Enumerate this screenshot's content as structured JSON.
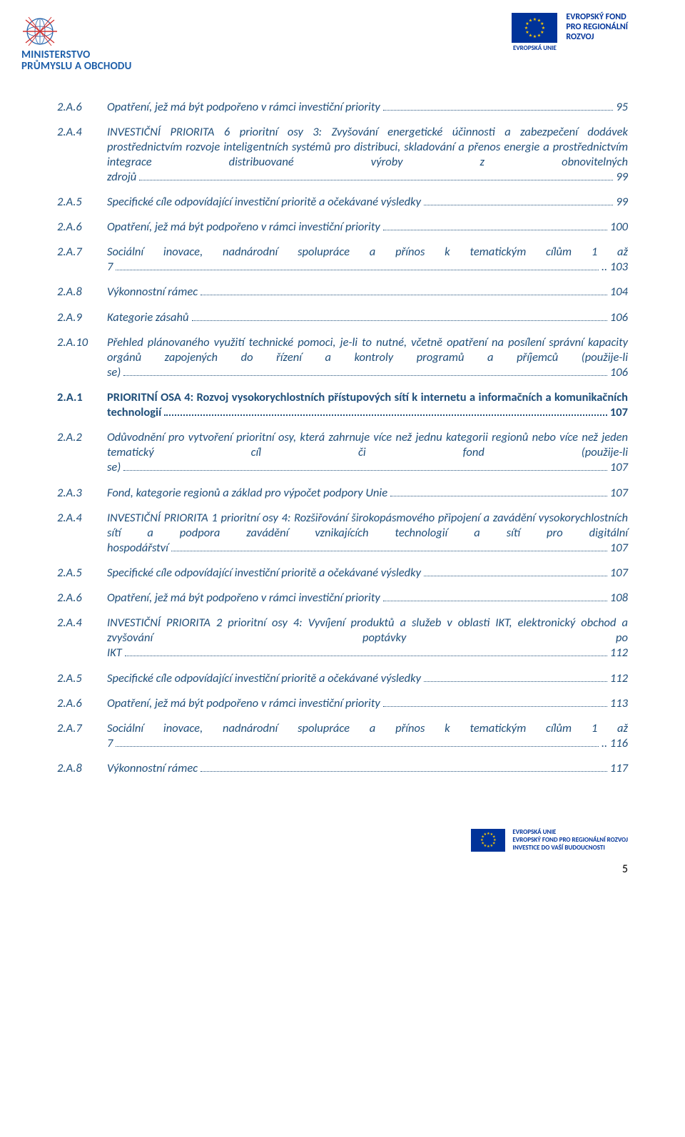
{
  "colors": {
    "toc_text": "#1f4e79",
    "eu_blue": "#003399",
    "eu_gold": "#ffcc00",
    "body_bg": "#ffffff"
  },
  "typography": {
    "body_family": "Calibri",
    "toc_fontsize_pt": 12,
    "toc_style": "italic",
    "heading_weight": 700
  },
  "header": {
    "mpo_line1": "MINISTERSTVO",
    "mpo_line2": "PRŮMYSLU A OBCHODU",
    "eu_label": "EVROPSKÁ UNIE",
    "efrr_line1": "EVROPSKÝ FOND",
    "efrr_line2": "PRO REGIONÁLNÍ",
    "efrr_line3": "ROZVOJ"
  },
  "toc": [
    {
      "num": "2.A.6",
      "text": "Opatření, jež má být podpořeno v rámci investiční priority",
      "page": "95",
      "bold": false
    },
    {
      "num": "2.A.4",
      "text": "INVESTIČNÍ PRIORITA 6 prioritní osy 3: Zvyšování energetické účinnosti a zabezpečení dodávek prostřednictvím rozvoje inteligentních systémů pro distribuci, skladování a přenos energie a prostřednictvím integrace distribuované výroby z obnovitelných zdrojů",
      "page": "99",
      "bold": false
    },
    {
      "num": "2.A.5",
      "text": "Specifické cíle odpovídající investiční prioritě a očekávané výsledky",
      "page": "99",
      "bold": false
    },
    {
      "num": "2.A.6",
      "text": "Opatření, jež má být podpořeno v rámci investiční priority",
      "page": "100",
      "bold": false
    },
    {
      "num": "2.A.7",
      "text": "Sociální inovace, nadnárodní spolupráce a přínos k tematickým cílům 1 až 7",
      "page": "103",
      "bold": false,
      "tight": true
    },
    {
      "num": "2.A.8",
      "text": "Výkonnostní rámec",
      "page": "104",
      "bold": false
    },
    {
      "num": "2.A.9",
      "text": "Kategorie zásahů",
      "page": "106",
      "bold": false
    },
    {
      "num": "2.A.10",
      "text": "Přehled plánovaného využití technické pomoci, je-li to nutné, včetně opatření na posílení správní kapacity orgánů zapojených do řízení a kontroly programů a příjemců (použije-li se)",
      "page": "106",
      "bold": false
    },
    {
      "num": "2.A.1",
      "text": "PRIORITNÍ OSA 4: Rozvoj vysokorychlostních přístupových sítí k internetu a informačních a komunikačních technologií",
      "page": "107",
      "bold": true
    },
    {
      "num": "2.A.2",
      "text": "Odůvodnění pro vytvoření prioritní osy, která zahrnuje více než jednu kategorii regionů nebo více než jeden tematický cíl či fond (použije-li se)",
      "page": "107",
      "bold": false
    },
    {
      "num": "2.A.3",
      "text": "Fond, kategorie regionů a základ pro výpočet podpory Unie",
      "page": "107",
      "bold": false
    },
    {
      "num": "2.A.4",
      "text": "INVESTIČNÍ PRIORITA 1 prioritní osy 4: Rozšiřování širokopásmového připojení a zavádění vysokorychlostních sítí a podpora zavádění vznikajících technologií a sítí pro digitální hospodářství",
      "page": "107",
      "bold": false
    },
    {
      "num": "2.A.5",
      "text": "Specifické cíle odpovídající investiční prioritě a očekávané výsledky",
      "page": "107",
      "bold": false
    },
    {
      "num": "2.A.6",
      "text": "Opatření, jež má být podpořeno v rámci investiční priority",
      "page": "108",
      "bold": false
    },
    {
      "num": "2.A.4",
      "text": "INVESTIČNÍ PRIORITA 2 prioritní osy 4: Vyvíjení produktů a služeb v oblasti IKT, elektronický obchod a zvyšování poptávky po IKT",
      "page": "112",
      "bold": false
    },
    {
      "num": "2.A.5",
      "text": "Specifické cíle odpovídající investiční prioritě a očekávané výsledky",
      "page": "112",
      "bold": false
    },
    {
      "num": "2.A.6",
      "text": "Opatření, jež má být podpořeno v rámci investiční priority",
      "page": "113",
      "bold": false
    },
    {
      "num": "2.A.7",
      "text": "Sociální inovace, nadnárodní spolupráce a přínos k tematickým cílům 1 až 7",
      "page": "116",
      "bold": false,
      "tight": true
    },
    {
      "num": "2.A.8",
      "text": "Výkonnostní rámec",
      "page": "117",
      "bold": false
    }
  ],
  "footer": {
    "line1": "EVROPSKÁ UNIE",
    "line2": "EVROPSKÝ FOND PRO REGIONÁLNÍ ROZVOJ",
    "line3": "INVESTICE DO VAŠÍ BUDOUCNOSTI",
    "page_number": "5"
  }
}
